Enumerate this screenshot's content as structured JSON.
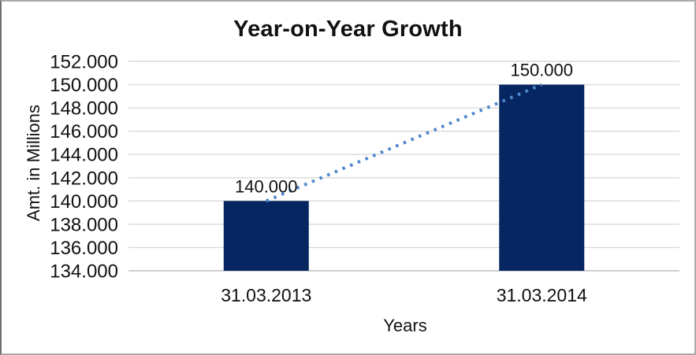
{
  "chart_data": {
    "type": "bar",
    "title": "Year-on-Year Growth",
    "xlabel": "Years",
    "ylabel": "Amt. in Millions",
    "categories": [
      "31.03.2013",
      "31.03.2014"
    ],
    "values": [
      140000,
      150000
    ],
    "value_labels": [
      "140.000",
      "150.000"
    ],
    "y_ticks": [
      {
        "value": 134000,
        "label": "134.000"
      },
      {
        "value": 136000,
        "label": "136.000"
      },
      {
        "value": 138000,
        "label": "138.000"
      },
      {
        "value": 140000,
        "label": "140.000"
      },
      {
        "value": 142000,
        "label": "142.000"
      },
      {
        "value": 144000,
        "label": "144.000"
      },
      {
        "value": 146000,
        "label": "146.000"
      },
      {
        "value": 148000,
        "label": "148.000"
      },
      {
        "value": 150000,
        "label": "150.000"
      },
      {
        "value": 152000,
        "label": "152.000"
      }
    ],
    "ylim": [
      134000,
      152000
    ],
    "grid": "horizontal",
    "legend": "none",
    "colors": {
      "bar": "#052660",
      "trendline": "#4f87cd",
      "gridline": "#d9d9d9",
      "baseline": "#c0c0c0",
      "text": "#111111"
    },
    "trendline": {
      "style": "dotted",
      "connects": "bar-tops",
      "points": [
        [
          0,
          140000
        ],
        [
          1,
          150000
        ]
      ]
    }
  }
}
